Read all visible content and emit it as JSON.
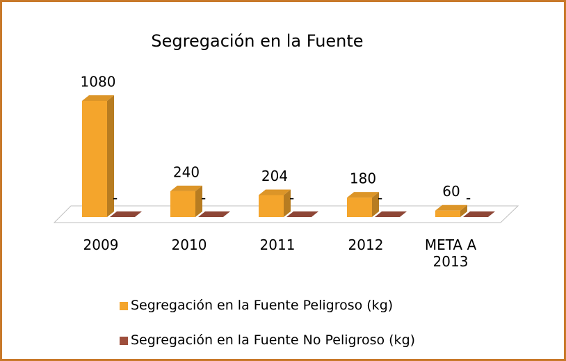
{
  "chart_data": {
    "type": "bar3d",
    "title": "Segregación en la Fuente",
    "categories": [
      "2009",
      "2010",
      "2011",
      "2012",
      "META A 2013"
    ],
    "series": [
      {
        "name": "Segregación en la Fuente Peligroso (kg)",
        "color": "#f4a52c",
        "values": [
          1080,
          240,
          204,
          180,
          60
        ]
      },
      {
        "name": "Segregación en la Fuente No Peligroso (kg)",
        "color": "#9e4e3c",
        "values": [
          0,
          0,
          0,
          0,
          0
        ],
        "value_labels": [
          "-",
          "-",
          "-",
          "-",
          "-"
        ]
      }
    ]
  }
}
